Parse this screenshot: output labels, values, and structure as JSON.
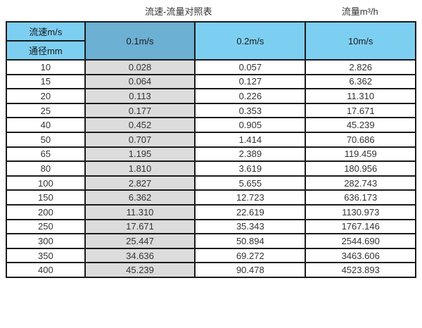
{
  "page": {
    "title_left": "流速-流量对照表",
    "title_right": "流量m³/h"
  },
  "colors": {
    "header_blue": "#7dcff2",
    "header_blue_dark": "#6cb0d3",
    "col_gray": "#dcdcdc",
    "border": "#1b1b1b",
    "text": "#333333"
  },
  "chart_data": {
    "type": "table",
    "title": "流速-流量对照表",
    "right_title": "流量m³/h",
    "corner_top": "流速m/s",
    "corner_bottom": "通径mm",
    "velocity_columns": [
      "0.1m/s",
      "0.2m/s",
      "10m/s"
    ],
    "row_header_label": "通径mm",
    "rows": [
      [
        "10",
        "0.028",
        "0.057",
        "2.826"
      ],
      [
        "15",
        "0.064",
        "0.127",
        "6.362"
      ],
      [
        "20",
        "0.113",
        "0.226",
        "11.310"
      ],
      [
        "25",
        "0.177",
        "0.353",
        "17.671"
      ],
      [
        "40",
        "0.452",
        "0.905",
        "45.239"
      ],
      [
        "50",
        "0.707",
        "1.414",
        "70.686"
      ],
      [
        "65",
        "1.195",
        "2.389",
        "119.459"
      ],
      [
        "80",
        "1.810",
        "3.619",
        "180.956"
      ],
      [
        "100",
        "2.827",
        "5.655",
        "282.743"
      ],
      [
        "150",
        "6.362",
        "12.723",
        "636.173"
      ],
      [
        "200",
        "11.310",
        "22.619",
        "1130.973"
      ],
      [
        "250",
        "17.671",
        "35.343",
        "1767.146"
      ],
      [
        "300",
        "25.447",
        "50.894",
        "2544.690"
      ],
      [
        "350",
        "34.636",
        "69.272",
        "3463.606"
      ],
      [
        "400",
        "45.239",
        "90.478",
        "4523.893"
      ]
    ]
  }
}
